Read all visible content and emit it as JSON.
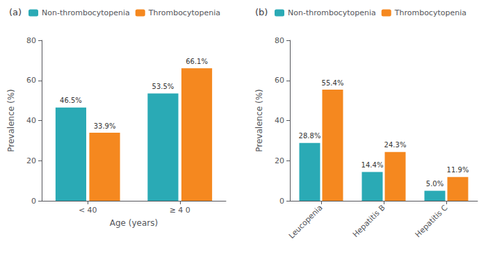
{
  "chart_data": [
    {
      "type": "bar",
      "title": "(a)",
      "categories": [
        "< 40",
        "≥ 4 0"
      ],
      "xlabel": "Age (years)",
      "ylabel": "Prevalence (%)",
      "series": [
        {
          "name": "Non-thrombocytopenia",
          "color": "#2AAAB5",
          "values": [
            46.5,
            53.5
          ],
          "value_labels": [
            "46.5%",
            "53.5%"
          ]
        },
        {
          "name": "Thrombocytopenia",
          "color": "#F5881F",
          "values": [
            33.9,
            66.1
          ],
          "value_labels": [
            "33.9%",
            "66.1%"
          ]
        }
      ],
      "ylim": [
        0,
        80
      ],
      "yticks": [
        0,
        20,
        40,
        60,
        80
      ],
      "grid": false,
      "legend": "upper left",
      "data_labels": true
    },
    {
      "type": "bar",
      "title": "(b)",
      "categories": [
        "Leucopenia",
        "Hepatitis B",
        "Hepatitis C"
      ],
      "ylabel": "Prevalence (%)",
      "series": [
        {
          "name": "Non-thrombocytopenia",
          "color": "#2AAAB5",
          "values": [
            28.8,
            14.4,
            5.0
          ],
          "value_labels": [
            "28.8%",
            "14.4%",
            "5.0%"
          ]
        },
        {
          "name": "Thrombocytopenia",
          "color": "#F5881F",
          "values": [
            55.4,
            24.3,
            11.9
          ],
          "value_labels": [
            "55.4%",
            "24.3%",
            "11.9%"
          ]
        }
      ],
      "ylim": [
        0,
        80
      ],
      "yticks": [
        0,
        20,
        40,
        60,
        80
      ],
      "grid": false,
      "legend": "upper left",
      "data_labels": true
    }
  ]
}
